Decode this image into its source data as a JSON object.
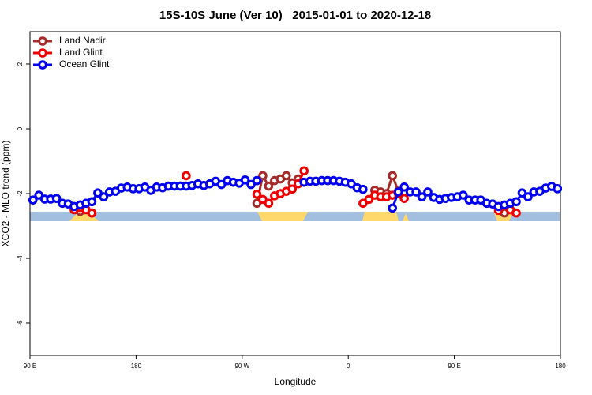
{
  "chart_data": {
    "type": "line",
    "title": "15S-10S June (Ver 10)   2015-01-01 to 2020-12-18",
    "x_label": "Longitude",
    "y_label": "XCO2 - MLO trend (ppm)",
    "xlim": [
      90,
      540
    ],
    "xticks": [
      {
        "value": 90,
        "label": "90 E"
      },
      {
        "value": 180,
        "label": "180"
      },
      {
        "value": 270,
        "label": "90 W"
      },
      {
        "value": 360,
        "label": "0"
      },
      {
        "value": 450,
        "label": "90 E"
      },
      {
        "value": 540,
        "label": "180"
      }
    ],
    "ylim": [
      -7,
      3
    ],
    "yticks": [
      -6,
      -4,
      -2,
      0,
      2
    ],
    "legend": "top-left",
    "x": [
      92.5,
      97.5,
      102.5,
      107.5,
      112.5,
      117.5,
      122.5,
      127.5,
      132.5,
      137.5,
      142.5,
      147.5,
      152.5,
      157.5,
      162.5,
      167.5,
      172.5,
      177.5,
      182.5,
      187.5,
      192.5,
      197.5,
      202.5,
      207.5,
      212.5,
      217.5,
      222.5,
      227.5,
      232.5,
      237.5,
      242.5,
      247.5,
      252.5,
      257.5,
      262.5,
      267.5,
      272.5,
      277.5,
      282.5,
      287.5,
      292.5,
      297.5,
      302.5,
      307.5,
      312.5,
      317.5,
      322.5,
      327.5,
      332.5,
      337.5,
      342.5,
      347.5,
      352.5,
      357.5,
      362.5,
      367.5,
      372.5,
      377.5,
      382.5,
      387.5,
      392.5,
      397.5,
      402.5,
      407.5,
      412.5,
      417.5,
      422.5,
      427.5,
      432.5,
      437.5,
      442.5,
      447.5,
      452.5,
      457.5,
      462.5,
      467.5,
      472.5,
      477.5,
      482.5,
      487.5,
      492.5,
      497.5,
      502.5,
      507.5,
      512.5,
      517.5,
      522.5,
      527.5,
      532.5,
      537.5
    ],
    "series": [
      {
        "name": "Land Nadir",
        "color": "#a52a2a",
        "values": [
          null,
          null,
          null,
          null,
          null,
          null,
          null,
          null,
          -2.55,
          null,
          -2.6,
          null,
          null,
          null,
          null,
          null,
          null,
          null,
          null,
          null,
          null,
          null,
          null,
          null,
          null,
          null,
          null,
          null,
          null,
          null,
          null,
          null,
          null,
          null,
          null,
          null,
          null,
          null,
          -2.3,
          -1.45,
          -1.77,
          -1.6,
          -1.55,
          -1.45,
          -1.67,
          -1.55,
          null,
          null,
          null,
          null,
          null,
          null,
          null,
          null,
          null,
          null,
          null,
          null,
          -1.9,
          -1.95,
          -2.0,
          -1.45,
          -1.93,
          null,
          null,
          null,
          null,
          null,
          null,
          null,
          null,
          null,
          null,
          null,
          null,
          null,
          null,
          null,
          null,
          -2.45,
          -2.6,
          null,
          null,
          null,
          null,
          null,
          null,
          null,
          null,
          null
        ]
      },
      {
        "name": "Land Glint",
        "color": "#ee0000",
        "values": [
          null,
          null,
          null,
          null,
          null,
          null,
          null,
          -2.5,
          -2.43,
          -2.5,
          -2.6,
          null,
          null,
          null,
          null,
          null,
          null,
          null,
          null,
          null,
          null,
          null,
          null,
          null,
          null,
          null,
          -1.45,
          null,
          null,
          null,
          null,
          null,
          null,
          null,
          null,
          null,
          null,
          null,
          -2.02,
          -2.18,
          -2.3,
          -2.07,
          -2.0,
          -1.93,
          -1.86,
          -1.7,
          -1.3,
          null,
          null,
          null,
          null,
          null,
          null,
          null,
          null,
          null,
          -2.3,
          -2.18,
          -2.05,
          -2.1,
          -2.1,
          -2.05,
          -2.0,
          -2.15,
          null,
          null,
          null,
          null,
          null,
          null,
          null,
          null,
          null,
          null,
          null,
          null,
          null,
          null,
          null,
          -2.52,
          null,
          -2.5,
          -2.6,
          null,
          null,
          null,
          null,
          null,
          null,
          null
        ]
      },
      {
        "name": "Ocean Glint",
        "color": "#0000ee",
        "values": [
          -2.2,
          -2.05,
          -2.17,
          -2.17,
          -2.15,
          -2.3,
          -2.32,
          -2.4,
          -2.35,
          -2.3,
          -2.25,
          -1.98,
          -2.1,
          -1.95,
          -1.93,
          -1.83,
          -1.8,
          -1.85,
          -1.85,
          -1.8,
          -1.9,
          -1.8,
          -1.82,
          -1.77,
          -1.77,
          -1.77,
          -1.77,
          -1.75,
          -1.7,
          -1.75,
          -1.7,
          -1.62,
          -1.72,
          -1.6,
          -1.65,
          -1.68,
          -1.58,
          -1.72,
          -1.6,
          null,
          null,
          null,
          null,
          null,
          null,
          null,
          -1.65,
          -1.62,
          -1.62,
          -1.6,
          -1.6,
          -1.6,
          -1.62,
          -1.65,
          -1.7,
          -1.82,
          -1.87,
          null,
          null,
          null,
          null,
          -2.45,
          -1.95,
          -1.8,
          -1.95,
          -1.95,
          -2.1,
          -1.95,
          -2.12,
          -2.18,
          -2.15,
          -2.12,
          -2.1,
          -2.05,
          -2.2,
          -2.2,
          -2.2,
          -2.3,
          -2.32,
          -2.4,
          -2.35,
          -2.3,
          -2.25,
          -1.98,
          -2.1,
          -1.95,
          -1.93,
          -1.83,
          -1.78,
          -1.85
        ]
      }
    ]
  }
}
